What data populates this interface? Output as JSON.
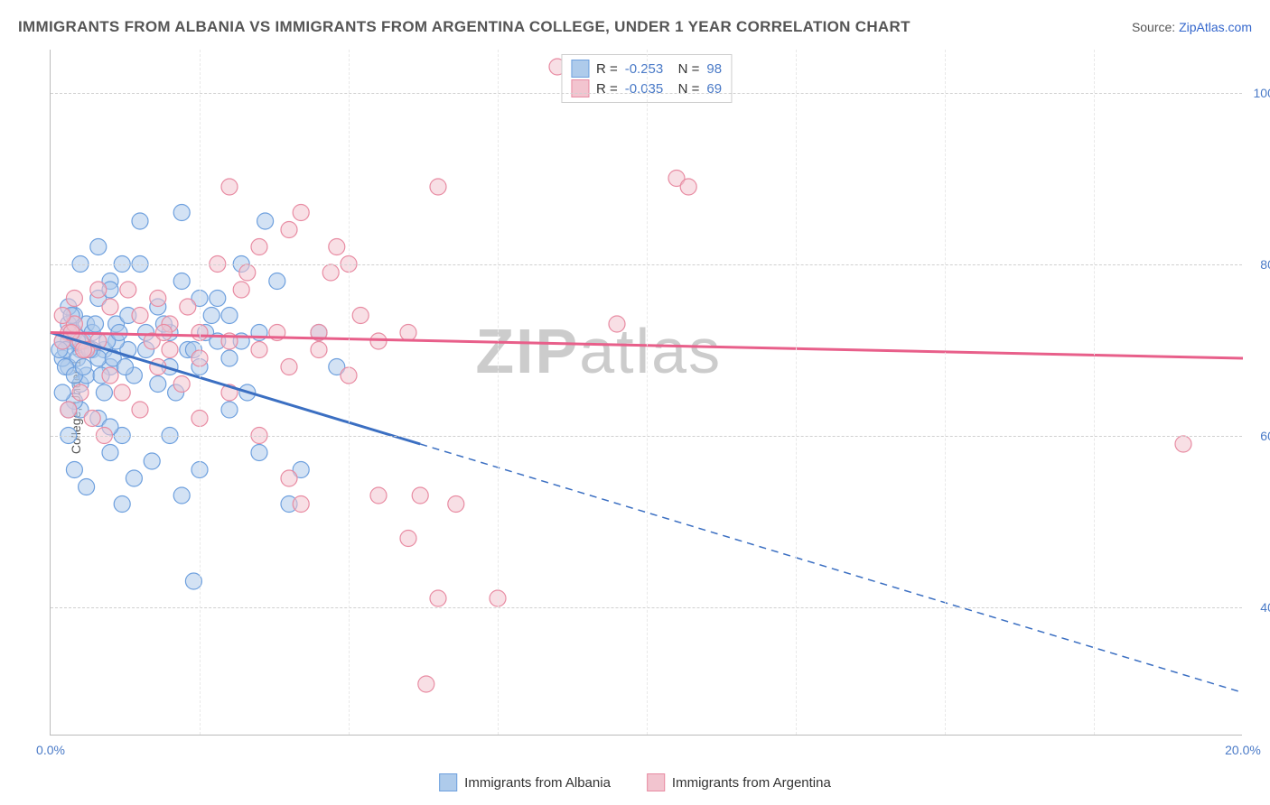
{
  "header": {
    "title": "IMMIGRANTS FROM ALBANIA VS IMMIGRANTS FROM ARGENTINA COLLEGE, UNDER 1 YEAR CORRELATION CHART",
    "source_prefix": "Source: ",
    "source_link": "ZipAtlas.com"
  },
  "watermark": {
    "zip": "ZIP",
    "atlas": "atlas"
  },
  "chart": {
    "type": "scatter-with-regression",
    "yaxis_title": "College, Under 1 year",
    "xlim": [
      0,
      20
    ],
    "ylim": [
      25,
      105
    ],
    "xticks": [
      0.0,
      20.0
    ],
    "xtick_labels": [
      "0.0%",
      "20.0%"
    ],
    "xminor_positions": [
      2.5,
      5.0,
      7.5,
      10.0,
      12.5,
      15.0,
      17.5
    ],
    "yticks": [
      40.0,
      60.0,
      80.0,
      100.0
    ],
    "ytick_labels": [
      "40.0%",
      "60.0%",
      "80.0%",
      "100.0%"
    ],
    "grid_color": "#d0d0d0",
    "background_color": "#ffffff",
    "tick_label_color": "#4a7ac7",
    "series": [
      {
        "name": "Immigrants from Albania",
        "fill": "#aecbeb",
        "stroke": "#6ea0de",
        "line_color": "#3b6fc2",
        "R": "-0.253",
        "N": "98",
        "reg_start": [
          0,
          72
        ],
        "reg_solid_end": [
          6.2,
          59
        ],
        "reg_dash_end": [
          20,
          30
        ],
        "points": [
          [
            0.3,
            71
          ],
          [
            0.4,
            72
          ],
          [
            0.5,
            70
          ],
          [
            0.3,
            68
          ],
          [
            0.6,
            73
          ],
          [
            0.4,
            74
          ],
          [
            0.7,
            70
          ],
          [
            0.2,
            69
          ],
          [
            0.5,
            66
          ],
          [
            1.0,
            78
          ],
          [
            1.2,
            80
          ],
          [
            1.5,
            85
          ],
          [
            0.8,
            76
          ],
          [
            1.1,
            73
          ],
          [
            0.9,
            65
          ],
          [
            1.3,
            70
          ],
          [
            1.4,
            67
          ],
          [
            1.6,
            72
          ],
          [
            1.8,
            75
          ],
          [
            2.0,
            68
          ],
          [
            2.2,
            86
          ],
          [
            2.3,
            70
          ],
          [
            2.5,
            76
          ],
          [
            2.6,
            72
          ],
          [
            2.8,
            71
          ],
          [
            3.0,
            74
          ],
          [
            3.0,
            69
          ],
          [
            3.2,
            80
          ],
          [
            3.3,
            65
          ],
          [
            3.5,
            72
          ],
          [
            3.6,
            85
          ],
          [
            3.8,
            78
          ],
          [
            1.0,
            58
          ],
          [
            1.2,
            60
          ],
          [
            1.4,
            55
          ],
          [
            1.7,
            57
          ],
          [
            2.0,
            60
          ],
          [
            2.2,
            53
          ],
          [
            2.5,
            56
          ],
          [
            0.3,
            60
          ],
          [
            0.5,
            63
          ],
          [
            0.8,
            62
          ],
          [
            1.0,
            61
          ],
          [
            0.4,
            56
          ],
          [
            0.6,
            54
          ],
          [
            1.2,
            52
          ],
          [
            2.4,
            43
          ],
          [
            0.5,
            80
          ],
          [
            0.8,
            82
          ],
          [
            1.0,
            77
          ],
          [
            0.3,
            75
          ],
          [
            0.6,
            67
          ],
          [
            0.9,
            70
          ],
          [
            0.4,
            64
          ],
          [
            3.0,
            63
          ],
          [
            3.5,
            58
          ],
          [
            4.0,
            52
          ],
          [
            4.2,
            56
          ],
          [
            4.5,
            72
          ],
          [
            4.8,
            68
          ],
          [
            0.2,
            71
          ],
          [
            0.25,
            70
          ],
          [
            0.35,
            72
          ],
          [
            0.3,
            73
          ],
          [
            0.45,
            69
          ],
          [
            0.15,
            70
          ],
          [
            0.55,
            71
          ],
          [
            0.25,
            68
          ],
          [
            0.4,
            67
          ],
          [
            0.2,
            65
          ],
          [
            0.3,
            63
          ],
          [
            2.0,
            72
          ],
          [
            2.5,
            68
          ],
          [
            1.8,
            66
          ],
          [
            2.2,
            78
          ],
          [
            2.8,
            76
          ],
          [
            3.2,
            71
          ],
          [
            1.5,
            80
          ],
          [
            1.0,
            68
          ],
          [
            0.7,
            72
          ],
          [
            0.8,
            69
          ],
          [
            1.1,
            71
          ],
          [
            1.3,
            74
          ],
          [
            1.6,
            70
          ],
          [
            1.9,
            73
          ],
          [
            2.1,
            65
          ],
          [
            2.4,
            70
          ],
          [
            2.7,
            74
          ],
          [
            0.35,
            74
          ],
          [
            0.45,
            71
          ],
          [
            0.55,
            68
          ],
          [
            0.65,
            70
          ],
          [
            0.75,
            73
          ],
          [
            0.85,
            67
          ],
          [
            0.95,
            71
          ],
          [
            1.05,
            69
          ],
          [
            1.15,
            72
          ],
          [
            1.25,
            68
          ]
        ]
      },
      {
        "name": "Immigrants from Argentina",
        "fill": "#f2c4cf",
        "stroke": "#e88ba2",
        "line_color": "#e85f8a",
        "R": "-0.035",
        "N": "69",
        "reg_start": [
          0,
          72
        ],
        "reg_solid_end": [
          20,
          69
        ],
        "reg_dash_end": null,
        "points": [
          [
            3.0,
            89
          ],
          [
            3.5,
            82
          ],
          [
            4.0,
            84
          ],
          [
            4.2,
            86
          ],
          [
            3.3,
            79
          ],
          [
            4.7,
            79
          ],
          [
            4.8,
            82
          ],
          [
            3.8,
            72
          ],
          [
            4.5,
            72
          ],
          [
            5.2,
            74
          ],
          [
            5.5,
            71
          ],
          [
            6.0,
            72
          ],
          [
            6.5,
            89
          ],
          [
            5.0,
            80
          ],
          [
            0.8,
            77
          ],
          [
            1.0,
            75
          ],
          [
            1.3,
            77
          ],
          [
            1.5,
            74
          ],
          [
            1.8,
            76
          ],
          [
            2.0,
            73
          ],
          [
            2.3,
            75
          ],
          [
            2.5,
            72
          ],
          [
            0.3,
            72
          ],
          [
            0.5,
            71
          ],
          [
            0.4,
            73
          ],
          [
            0.6,
            70
          ],
          [
            0.8,
            71
          ],
          [
            0.2,
            71
          ],
          [
            0.35,
            72
          ],
          [
            0.55,
            70
          ],
          [
            1.0,
            67
          ],
          [
            1.2,
            65
          ],
          [
            1.5,
            63
          ],
          [
            1.8,
            68
          ],
          [
            2.2,
            66
          ],
          [
            2.5,
            62
          ],
          [
            6.2,
            53
          ],
          [
            6.8,
            52
          ],
          [
            6.5,
            41
          ],
          [
            7.5,
            41
          ],
          [
            6.3,
            31
          ],
          [
            9.5,
            73
          ],
          [
            10.5,
            90
          ],
          [
            10.7,
            89
          ],
          [
            8.5,
            103
          ],
          [
            19.0,
            59
          ],
          [
            3.0,
            65
          ],
          [
            3.5,
            60
          ],
          [
            4.0,
            55
          ],
          [
            4.2,
            52
          ],
          [
            5.5,
            53
          ],
          [
            6.0,
            48
          ],
          [
            0.3,
            63
          ],
          [
            0.5,
            65
          ],
          [
            0.7,
            62
          ],
          [
            0.9,
            60
          ],
          [
            0.2,
            74
          ],
          [
            0.4,
            76
          ],
          [
            2.8,
            80
          ],
          [
            3.2,
            77
          ],
          [
            2.0,
            70
          ],
          [
            2.5,
            69
          ],
          [
            3.0,
            71
          ],
          [
            3.5,
            70
          ],
          [
            4.0,
            68
          ],
          [
            4.5,
            70
          ],
          [
            5.0,
            67
          ],
          [
            1.7,
            71
          ],
          [
            1.9,
            72
          ]
        ]
      }
    ],
    "marker_radius": 9,
    "marker_opacity": 0.55,
    "line_width_solid": 3,
    "line_width_dash": 1.5
  }
}
